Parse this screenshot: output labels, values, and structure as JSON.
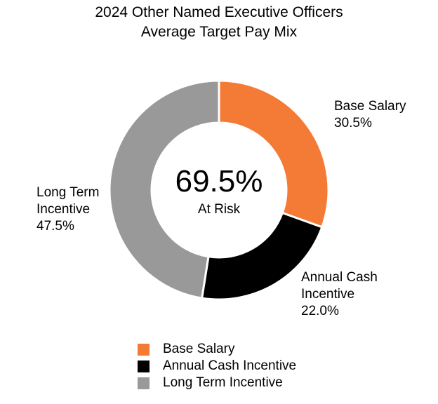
{
  "chart_data": {
    "type": "pie",
    "title": "2024 Other Named Executive Officers",
    "subtitle": "Average Target Pay Mix",
    "center": {
      "value": "69.5%",
      "label": "At Risk"
    },
    "categories": [
      "Base Salary",
      "Annual Cash Incentive",
      "Long Term Incentive"
    ],
    "values": [
      30.5,
      22.0,
      47.5
    ],
    "value_labels": [
      "30.5%",
      "22.0%",
      "47.5%"
    ],
    "slice_label_lines": [
      [
        "Base Salary"
      ],
      [
        "Annual Cash",
        "Incentive"
      ],
      [
        "Long Term",
        "Incentive"
      ]
    ],
    "colors": [
      "#f37b36",
      "#000000",
      "#999999"
    ],
    "legend_placement": "bottom"
  }
}
